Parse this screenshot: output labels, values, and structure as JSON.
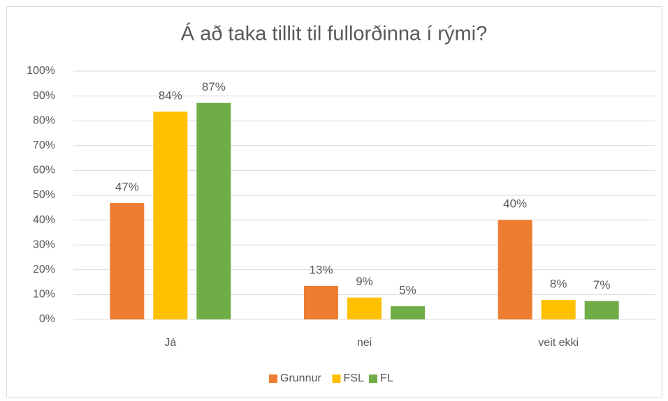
{
  "chart_data": {
    "type": "bar",
    "title": "Á að taka tillit til fullorðinna í rými?",
    "categories": [
      "Já",
      "nei",
      "veit ekki"
    ],
    "series": [
      {
        "name": "Grunnur",
        "color": "#ed7d31",
        "values": [
          46.9,
          13.5,
          40.1
        ],
        "value_labels": [
          "47%",
          "13%",
          "40%"
        ]
      },
      {
        "name": "FSL",
        "color": "#ffc000",
        "values": [
          83.7,
          8.8,
          7.8
        ],
        "value_labels": [
          "84%",
          "9%",
          "8%"
        ]
      },
      {
        "name": "FL",
        "color": "#70ad47",
        "values": [
          87.2,
          5.3,
          7.4
        ],
        "value_labels": [
          "87%",
          "5%",
          "7%"
        ]
      }
    ],
    "ylim": [
      0,
      100
    ],
    "yticks": [
      {
        "value": 0,
        "label": "0%"
      },
      {
        "value": 10,
        "label": "10%"
      },
      {
        "value": 20,
        "label": "20%"
      },
      {
        "value": 30,
        "label": "30%"
      },
      {
        "value": 40,
        "label": "40%"
      },
      {
        "value": 50,
        "label": "50%"
      },
      {
        "value": 60,
        "label": "60%"
      },
      {
        "value": 70,
        "label": "70%"
      },
      {
        "value": 80,
        "label": "80%"
      },
      {
        "value": 90,
        "label": "90%"
      },
      {
        "value": 100,
        "label": "100%"
      }
    ],
    "grid": true,
    "legend": "bottom"
  }
}
